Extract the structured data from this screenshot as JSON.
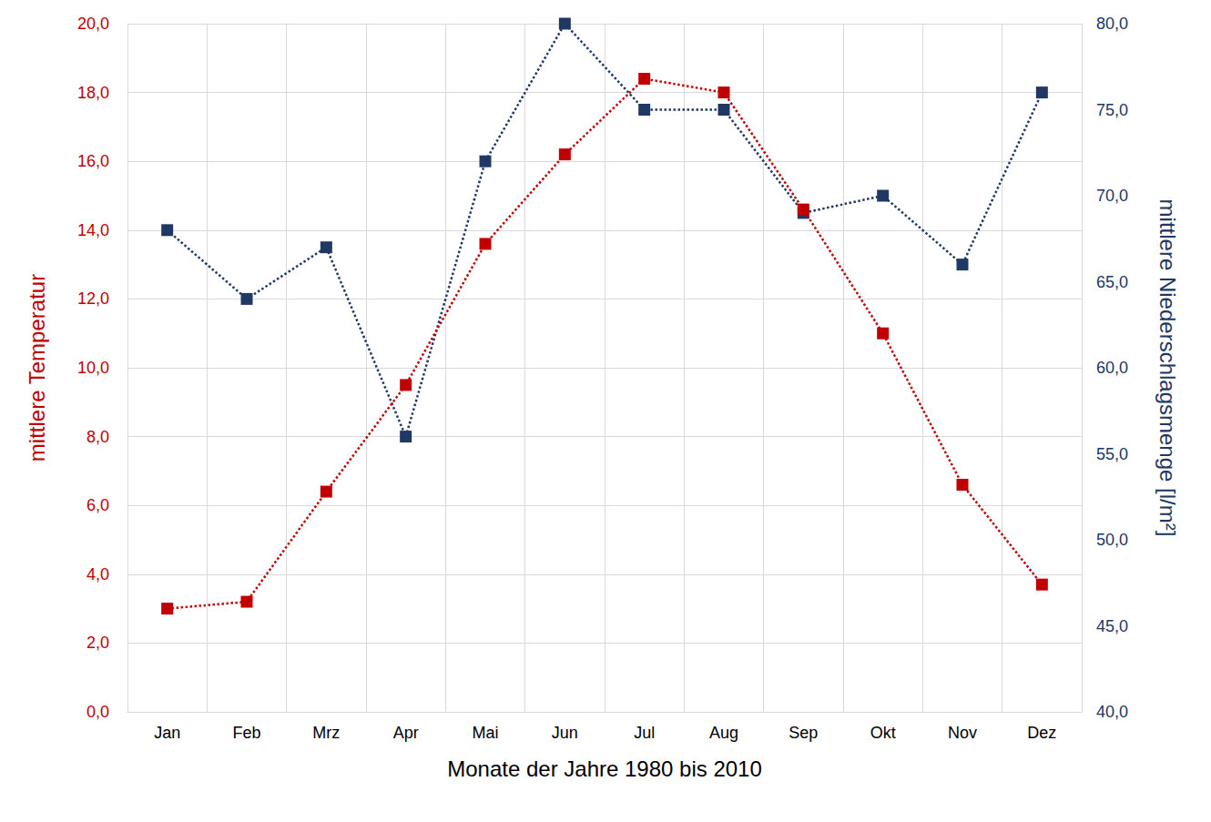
{
  "chart_data": {
    "type": "line",
    "x_label": "Monate der Jahre 1980 bis 2010",
    "y_label": "mittlere Temperatur",
    "y2_label": "mittlere Niederschlagsmenge [l/m²]",
    "categories": [
      "Jan",
      "Feb",
      "Mrz",
      "Apr",
      "Mai",
      "Jun",
      "Jul",
      "Aug",
      "Sep",
      "Okt",
      "Nov",
      "Dez"
    ],
    "series": [
      {
        "color": "#c00000",
        "marker": "square",
        "line_style": "dotted",
        "values": [
          3.0,
          3.2,
          6.4,
          9.5,
          13.6,
          16.2,
          18.4,
          18.0,
          14.6,
          11.0,
          6.6,
          3.7
        ]
      },
      {
        "color": "#203864",
        "marker": "square",
        "line_style": "dotted",
        "axis": "y2",
        "values": [
          68,
          64,
          67,
          56,
          72,
          80,
          75,
          75,
          69,
          70,
          66,
          76
        ]
      }
    ],
    "ylim": [
      0,
      20
    ],
    "yticks": [
      {
        "value": 0,
        "label": "0,0"
      },
      {
        "value": 2,
        "label": "2,0"
      },
      {
        "value": 4,
        "label": "4,0"
      },
      {
        "value": 6,
        "label": "6,0"
      },
      {
        "value": 8,
        "label": "8,0"
      },
      {
        "value": 10,
        "label": "10,0"
      },
      {
        "value": 12,
        "label": "12,0"
      },
      {
        "value": 14,
        "label": "14,0"
      },
      {
        "value": 16,
        "label": "16,0"
      },
      {
        "value": 18,
        "label": "18,0"
      },
      {
        "value": 20,
        "label": "20,0"
      }
    ],
    "y2lim": [
      40,
      80
    ],
    "y2ticks": [
      {
        "value": 40,
        "label": "40,0"
      },
      {
        "value": 45,
        "label": "45,0"
      },
      {
        "value": 50,
        "label": "50,0"
      },
      {
        "value": 55,
        "label": "55,0"
      },
      {
        "value": 60,
        "label": "60,0"
      },
      {
        "value": 65,
        "label": "65,0"
      },
      {
        "value": 70,
        "label": "70,0"
      },
      {
        "value": 75,
        "label": "75,0"
      },
      {
        "value": 80,
        "label": "80,0"
      }
    ],
    "grid": true
  }
}
